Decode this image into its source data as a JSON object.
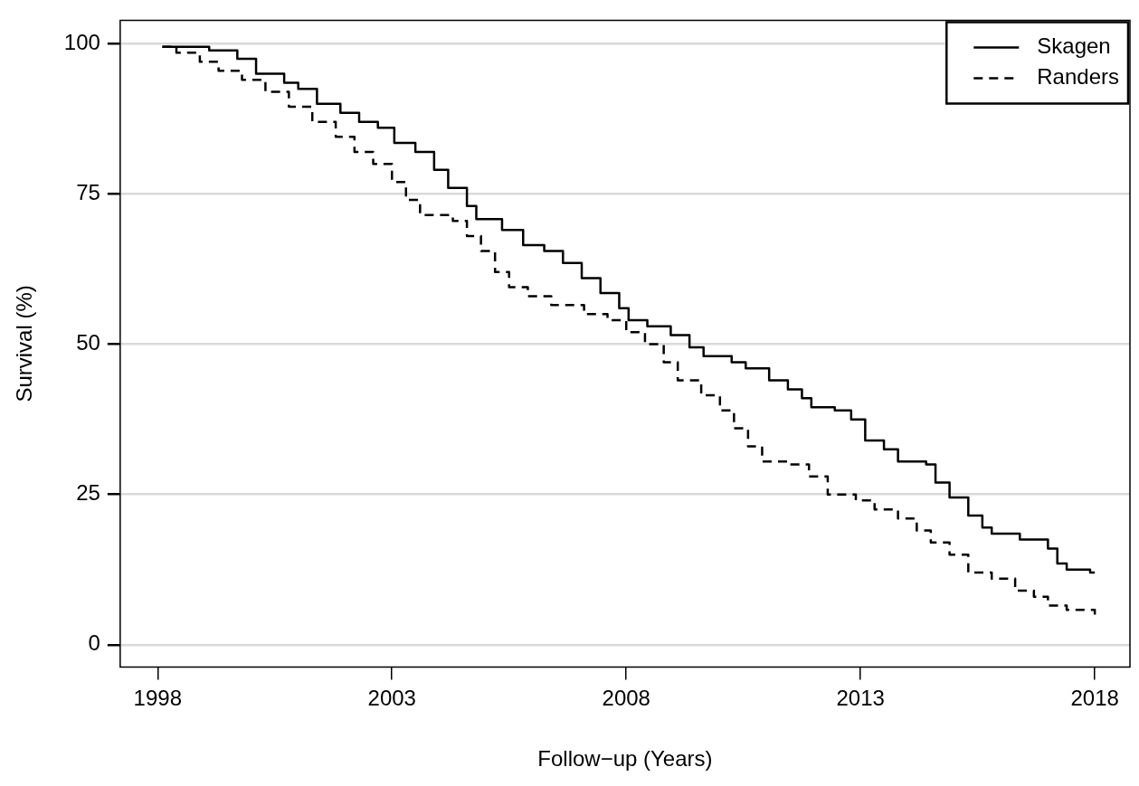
{
  "chart_data": {
    "type": "step",
    "xlabel": "Follow−up (Years)",
    "ylabel": "Survival (%)",
    "xlim": [
      1997.2,
      2018.75
    ],
    "ylim": [
      -3.7,
      103.9
    ],
    "xticks": [
      1998,
      2003,
      2008,
      2013,
      2018
    ],
    "yticks": [
      0,
      25,
      50,
      75,
      100
    ],
    "grid": "y",
    "legend": "top right",
    "series": [
      {
        "name": "Skagen",
        "color": "#000000",
        "line_style": "solid",
        "x": [
          1998.1,
          1999.1,
          1999.7,
          2000.1,
          2000.7,
          2001.0,
          2001.4,
          2001.9,
          2002.3,
          2002.7,
          2003.05,
          2003.5,
          2003.9,
          2004.2,
          2004.6,
          2004.8,
          2005.35,
          2005.8,
          2006.25,
          2006.65,
          2007.05,
          2007.45,
          2007.85,
          2008.05,
          2008.45,
          2008.95,
          2009.35,
          2009.65,
          2010.25,
          2010.55,
          2011.05,
          2011.45,
          2011.75,
          2011.95,
          2012.45,
          2012.8,
          2013.1,
          2013.5,
          2013.8,
          2014.4,
          2014.6,
          2014.9,
          2015.3,
          2015.6,
          2015.8,
          2016.4,
          2017.0,
          2017.2,
          2017.4,
          2017.9,
          2018.0
        ],
        "values": [
          99.5,
          98.9,
          97.5,
          95,
          93.5,
          92.5,
          90,
          88.5,
          87,
          86,
          83.5,
          82,
          79,
          76,
          73,
          70.8,
          69,
          66.5,
          65.5,
          63.5,
          61,
          58.5,
          56,
          54,
          53,
          51.5,
          49.5,
          48,
          47,
          46,
          44,
          42.5,
          41,
          39.5,
          39,
          37.5,
          34,
          32.5,
          30.5,
          30,
          27,
          24.5,
          21.5,
          19.5,
          18.5,
          17.5,
          16,
          13.5,
          12.5,
          12,
          12
        ]
      },
      {
        "name": "Randers",
        "color": "#000000",
        "line_style": "dashed",
        "x": [
          1998.1,
          1998.4,
          1998.9,
          1999.3,
          1999.8,
          2000.3,
          2000.8,
          2001.3,
          2001.8,
          2002.2,
          2002.6,
          2003.0,
          2003.3,
          2003.6,
          2004.3,
          2004.6,
          2004.9,
          2005.2,
          2005.5,
          2005.9,
          2006.4,
          2007.1,
          2007.6,
          2008.0,
          2008.4,
          2008.8,
          2009.1,
          2009.6,
          2010.0,
          2010.3,
          2010.6,
          2010.9,
          2011.5,
          2011.9,
          2012.3,
          2012.9,
          2013.3,
          2013.8,
          2014.2,
          2014.5,
          2014.9,
          2015.3,
          2015.8,
          2016.3,
          2016.7,
          2017.0,
          2017.4,
          2018.0
        ],
        "values": [
          99.5,
          98.5,
          97,
          95.5,
          94,
          92,
          89.5,
          87,
          84.5,
          82,
          80,
          77,
          74,
          71.5,
          70.5,
          68,
          65.5,
          62,
          59.5,
          58,
          56.5,
          55,
          54,
          52,
          50,
          47,
          44,
          41.5,
          39,
          36,
          33,
          30.5,
          30,
          28,
          25,
          24,
          22.5,
          21,
          19,
          17,
          15,
          12,
          11,
          9,
          8,
          6.5,
          5.8,
          5
        ]
      }
    ]
  }
}
